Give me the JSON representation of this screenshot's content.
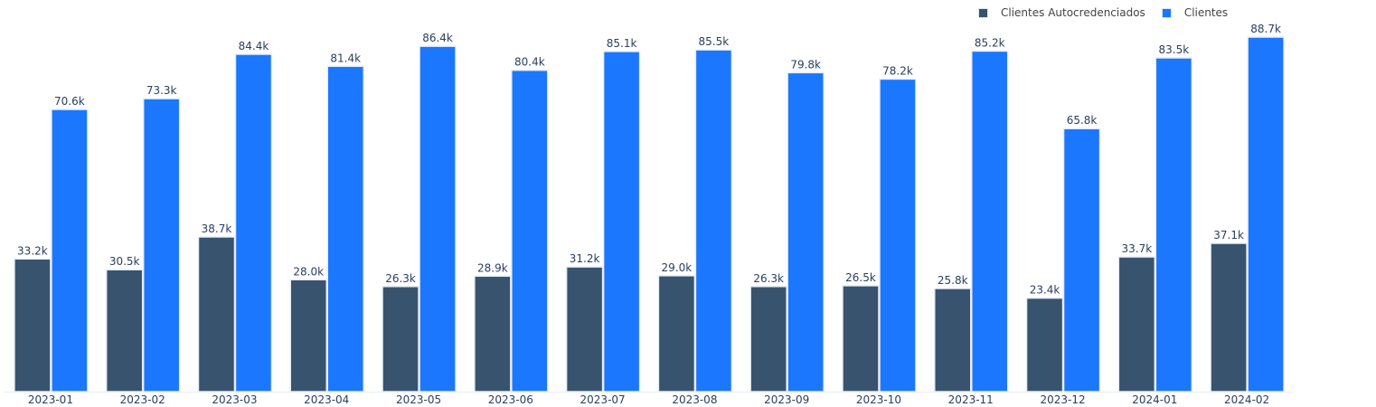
{
  "chart_data": {
    "type": "bar",
    "categories": [
      "2023-01",
      "2023-02",
      "2023-03",
      "2023-04",
      "2023-05",
      "2023-06",
      "2023-07",
      "2023-08",
      "2023-09",
      "2023-10",
      "2023-11",
      "2023-12",
      "2024-01",
      "2024-02"
    ],
    "series": [
      {
        "name": "Clientes Autocredenciados",
        "color": "#38536e",
        "values": [
          33.2,
          30.5,
          38.7,
          28.0,
          26.3,
          28.9,
          31.2,
          29.0,
          26.3,
          26.5,
          25.8,
          23.4,
          33.7,
          37.1
        ],
        "labels": [
          "33.2k",
          "30.5k",
          "38.7k",
          "28.0k",
          "26.3k",
          "28.9k",
          "31.2k",
          "29.0k",
          "26.3k",
          "26.5k",
          "25.8k",
          "23.4k",
          "33.7k",
          "37.1k"
        ]
      },
      {
        "name": "Clientes",
        "color": "#1b77fd",
        "values": [
          70.6,
          73.3,
          84.4,
          81.4,
          86.4,
          80.4,
          85.1,
          85.5,
          79.8,
          78.2,
          85.2,
          65.8,
          83.5,
          88.7
        ],
        "labels": [
          "70.6k",
          "73.3k",
          "84.4k",
          "81.4k",
          "86.4k",
          "80.4k",
          "85.1k",
          "85.5k",
          "79.8k",
          "78.2k",
          "85.2k",
          "65.8k",
          "83.5k",
          "88.7k"
        ]
      }
    ],
    "title": "",
    "xlabel": "",
    "ylabel": "",
    "ylim": [
      0,
      93
    ],
    "grid": false,
    "legend_position": "top-right"
  }
}
